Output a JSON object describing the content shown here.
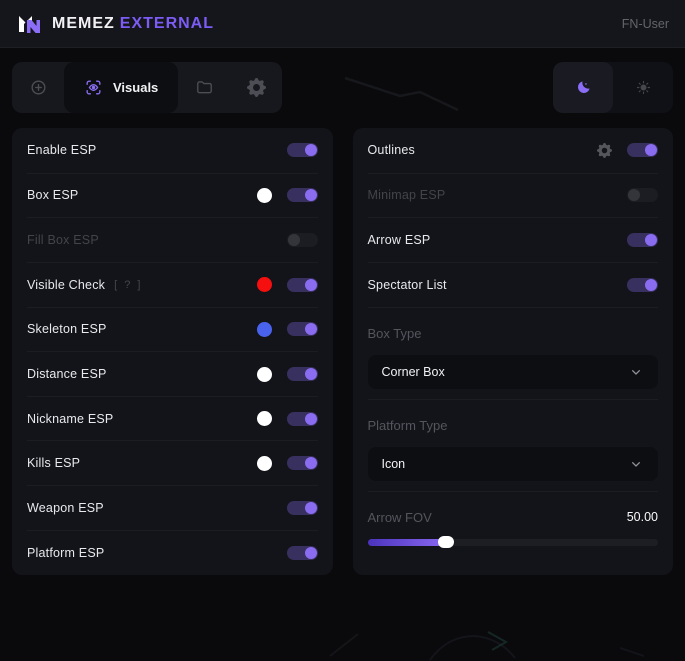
{
  "header": {
    "brand_primary": "MEMEZ",
    "brand_accent": "EXTERNAL",
    "user": "FN-User"
  },
  "toolbar": {
    "tabs": [
      {
        "id": "aimbot",
        "icon": "crosshair-icon",
        "label": "",
        "active": false
      },
      {
        "id": "visuals",
        "icon": "eye-scan-icon",
        "label": "Visuals",
        "active": true
      },
      {
        "id": "configs",
        "icon": "folder-icon",
        "label": "",
        "active": false
      },
      {
        "id": "settings",
        "icon": "gear-icon",
        "label": "",
        "active": false
      }
    ],
    "theme_options": [
      {
        "id": "dark",
        "icon": "moon-icon",
        "active": true
      },
      {
        "id": "light",
        "icon": "sun-icon",
        "active": false
      }
    ]
  },
  "panels": {
    "left": {
      "rows": [
        {
          "type": "toggle",
          "label": "Enable ESP",
          "toggle": true
        },
        {
          "type": "toggle",
          "label": "Box ESP",
          "swatch": "#ffffff",
          "toggle": true
        },
        {
          "type": "toggle",
          "label": "Fill Box ESP",
          "disabled": true,
          "toggle": false
        },
        {
          "type": "toggle",
          "label": "Visible Check",
          "hint": "[ ? ]",
          "swatch": "#f50f0f",
          "toggle": true
        },
        {
          "type": "toggle",
          "label": "Skeleton ESP",
          "swatch": "#4a63ee",
          "toggle": true
        },
        {
          "type": "toggle",
          "label": "Distance ESP",
          "swatch": "#ffffff",
          "toggle": true
        },
        {
          "type": "toggle",
          "label": "Nickname ESP",
          "swatch": "#ffffff",
          "toggle": true
        },
        {
          "type": "toggle",
          "label": "Kills ESP",
          "swatch": "#ffffff",
          "toggle": true
        },
        {
          "type": "toggle",
          "label": "Weapon ESP",
          "toggle": true
        },
        {
          "type": "toggle",
          "label": "Platform ESP",
          "toggle": true
        }
      ]
    },
    "right": {
      "rows": [
        {
          "type": "toggle",
          "label": "Outlines",
          "gear": true,
          "toggle": true
        },
        {
          "type": "toggle",
          "label": "Minimap ESP",
          "disabled": true,
          "toggle": false
        },
        {
          "type": "toggle",
          "label": "Arrow ESP",
          "toggle": true
        },
        {
          "type": "toggle",
          "label": "Spectator List",
          "toggle": true
        },
        {
          "type": "select",
          "label": "Box Type",
          "value": "Corner Box"
        },
        {
          "type": "select",
          "label": "Platform Type",
          "value": "Icon"
        },
        {
          "type": "slider",
          "label": "Arrow FOV",
          "value": "50.00",
          "percent": 27
        }
      ]
    }
  },
  "colors": {
    "accent": "#8b6ef5",
    "accent_deep": "#4b33be",
    "swatch_white": "#ffffff",
    "swatch_red": "#f50f0f",
    "swatch_blue": "#4a63ee",
    "panel_bg": "#131419",
    "page_bg": "#0a0a0d"
  }
}
